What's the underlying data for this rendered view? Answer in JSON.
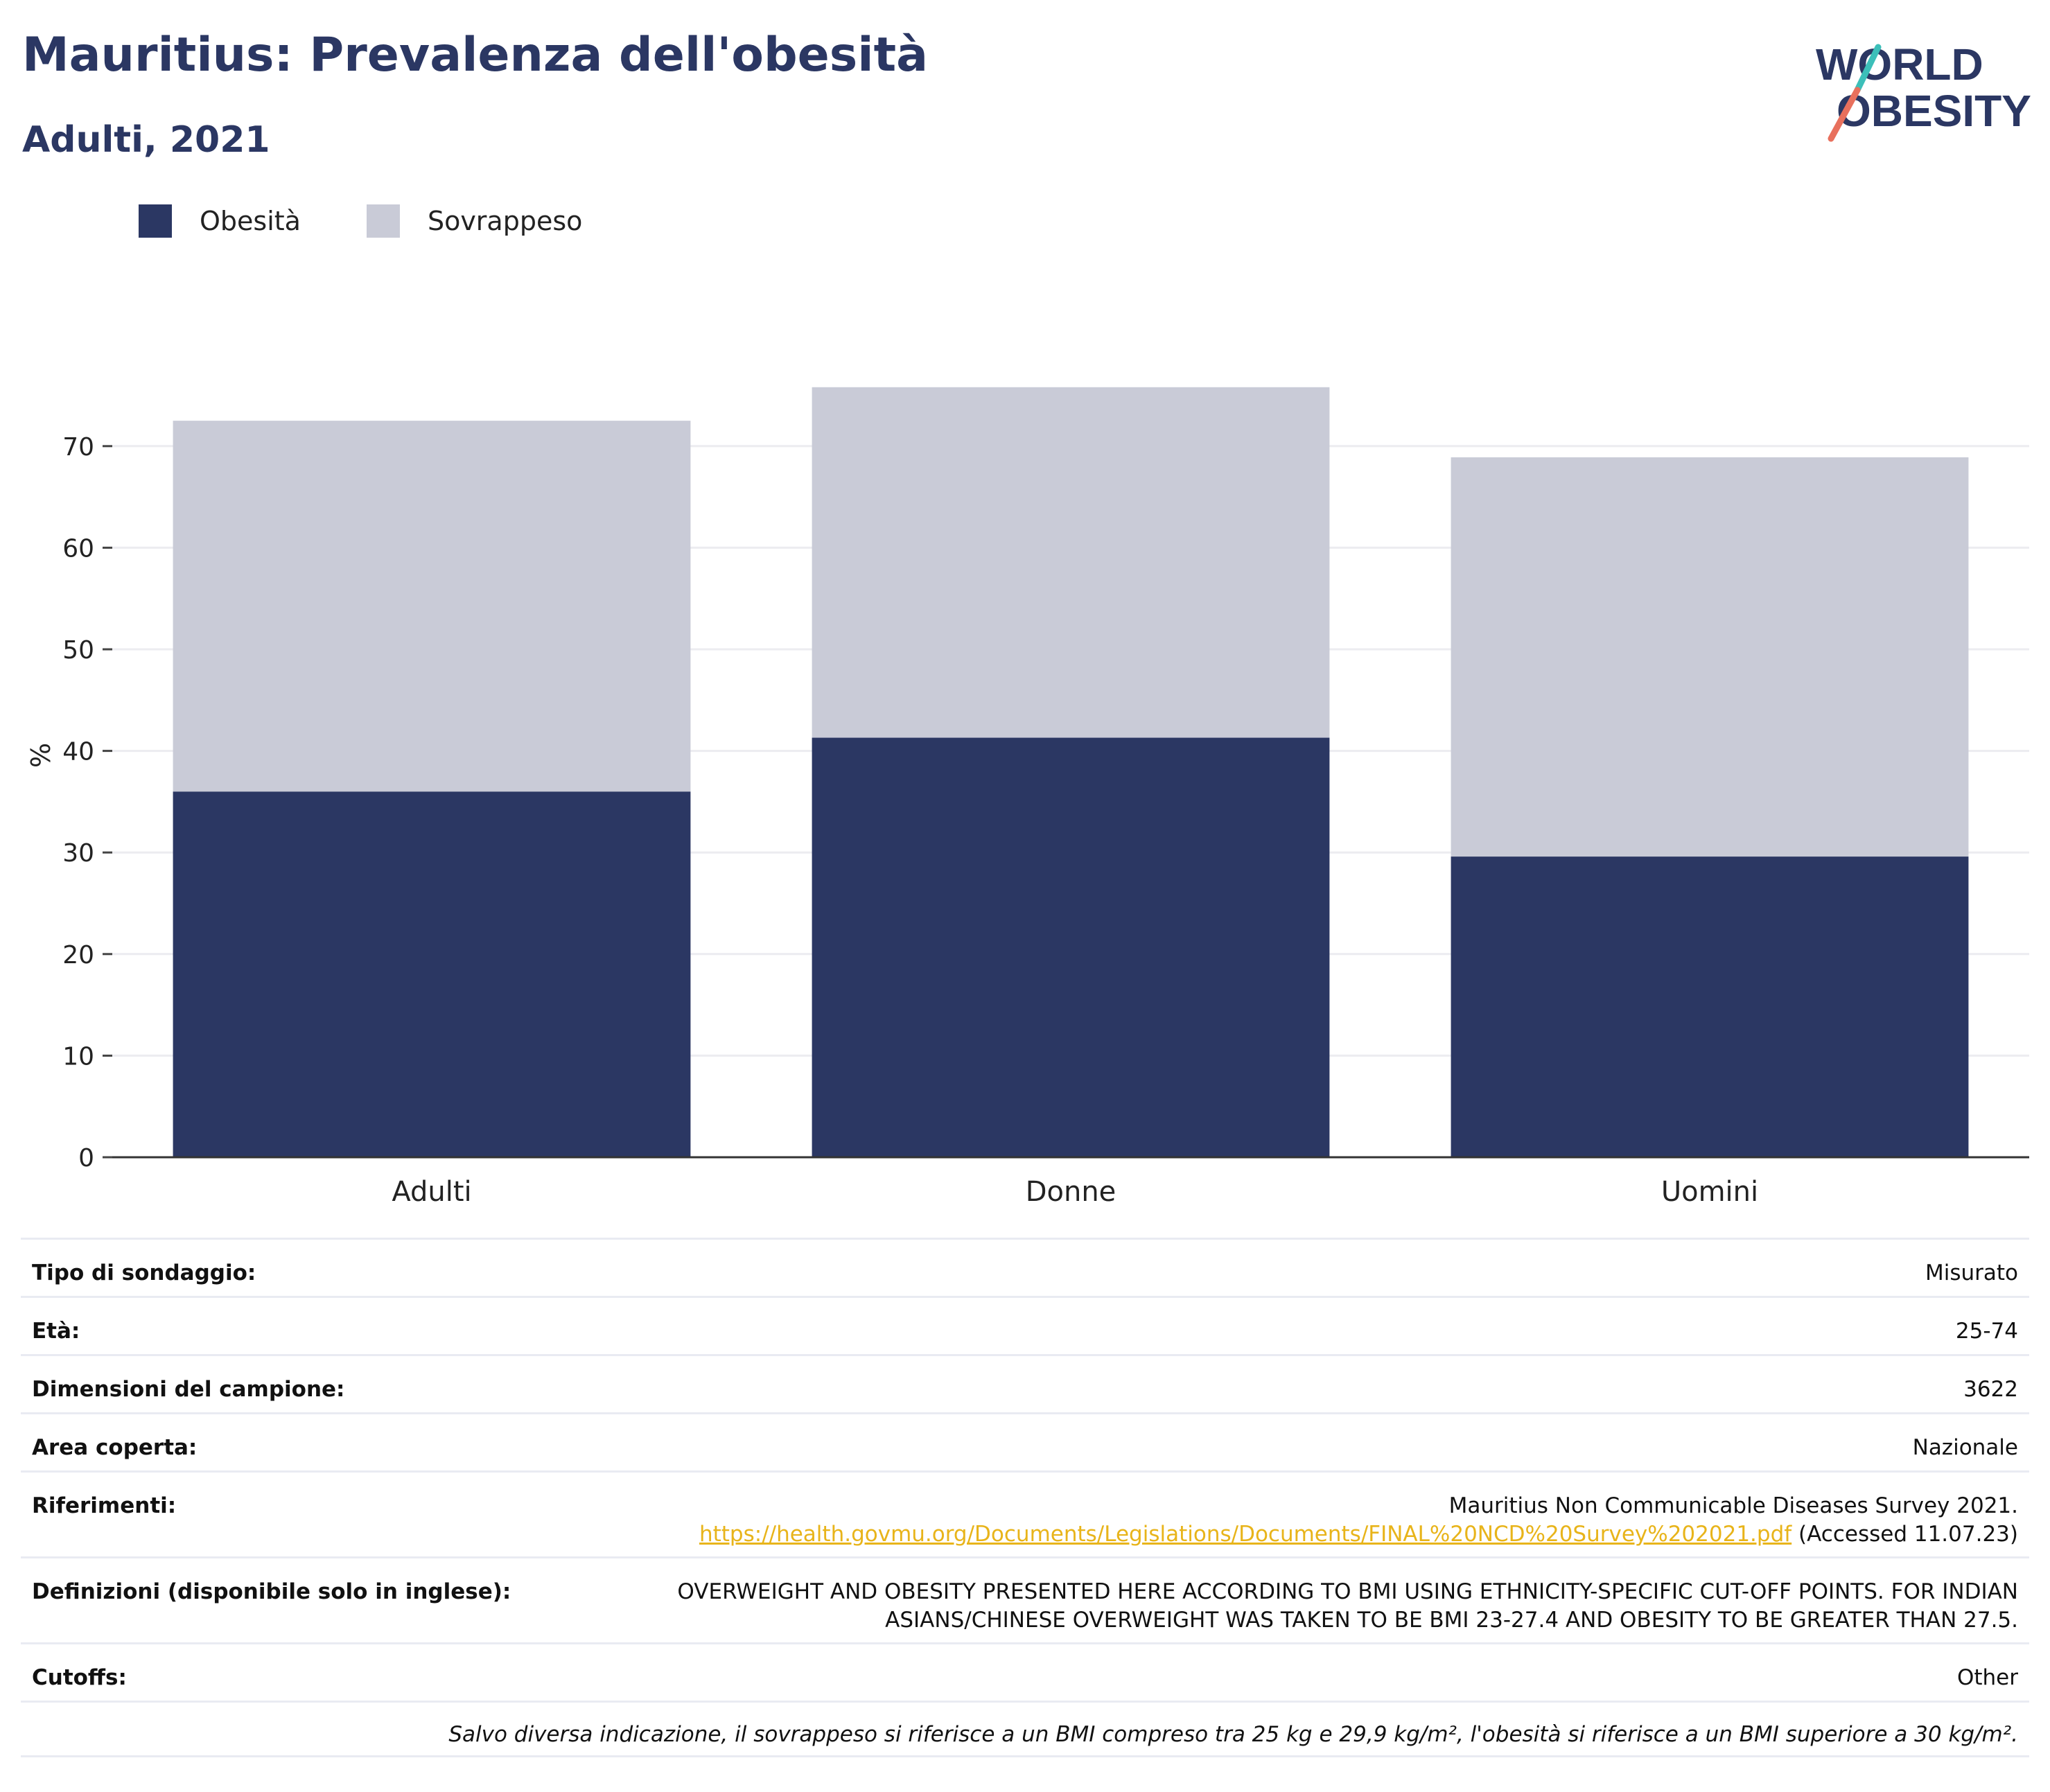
{
  "header": {
    "title": "Mauritius: Prevalenza dell'obesità",
    "subtitle": "Adulti, 2021"
  },
  "logo": {
    "line1": "WORLD",
    "line2": "OBESITY",
    "colors": [
      "#2b3763",
      "#e8705d",
      "#3cbfb9"
    ]
  },
  "legend": [
    {
      "label": "Obesità",
      "color": "#2b3763"
    },
    {
      "label": "Sovrappeso",
      "color": "#c9cbd7"
    }
  ],
  "chart_data": {
    "type": "bar",
    "stacked": true,
    "categories": [
      "Adulti",
      "Donne",
      "Uomini"
    ],
    "series": [
      {
        "name": "Obesità",
        "values": [
          36.0,
          41.3,
          29.6
        ],
        "color": "#2b3763"
      },
      {
        "name": "Sovrappeso",
        "values": [
          36.5,
          34.5,
          39.3
        ],
        "color": "#c9cbd7"
      }
    ],
    "ylabel": "%",
    "ylim": [
      0,
      75
    ],
    "yticks": [
      0,
      10,
      20,
      30,
      40,
      50,
      60,
      70
    ],
    "grid": true,
    "legend_position": "top-left"
  },
  "info": {
    "survey_type": {
      "label": "Tipo di sondaggio:",
      "value": "Misurato"
    },
    "age": {
      "label": "Età:",
      "value": "25-74"
    },
    "sample_size": {
      "label": "Dimensioni del campione:",
      "value": "3622"
    },
    "area": {
      "label": "Area coperta:",
      "value": "Nazionale"
    },
    "references": {
      "label": "Riferimenti:",
      "text": "Mauritius Non Communicable Diseases Survey 2021.",
      "link": "https://health.govmu.org/Documents/Legislations/Documents/FINAL%20NCD%20Survey%202021.pdf",
      "accessed": "(Accessed 11.07.23)"
    },
    "definitions": {
      "label": "Definizioni (disponibile solo in inglese):",
      "line1": "OVERWEIGHT AND OBESITY PRESENTED HERE ACCORDING TO BMI USING ETHNICITY-SPECIFIC CUT-OFF POINTS. FOR INDIAN",
      "line2": "ASIANS/CHINESE OVERWEIGHT WAS TAKEN TO BE BMI 23-27.4 AND OBESITY TO BE GREATER THAN 27.5."
    },
    "cutoffs": {
      "label": "Cutoffs:",
      "value": "Other"
    },
    "footnote": "Salvo diversa indicazione, il sovrappeso si riferisce a un BMI compreso tra 25 kg e 29,9 kg/m², l'obesità si riferisce a un BMI superiore a 30 kg/m²."
  }
}
